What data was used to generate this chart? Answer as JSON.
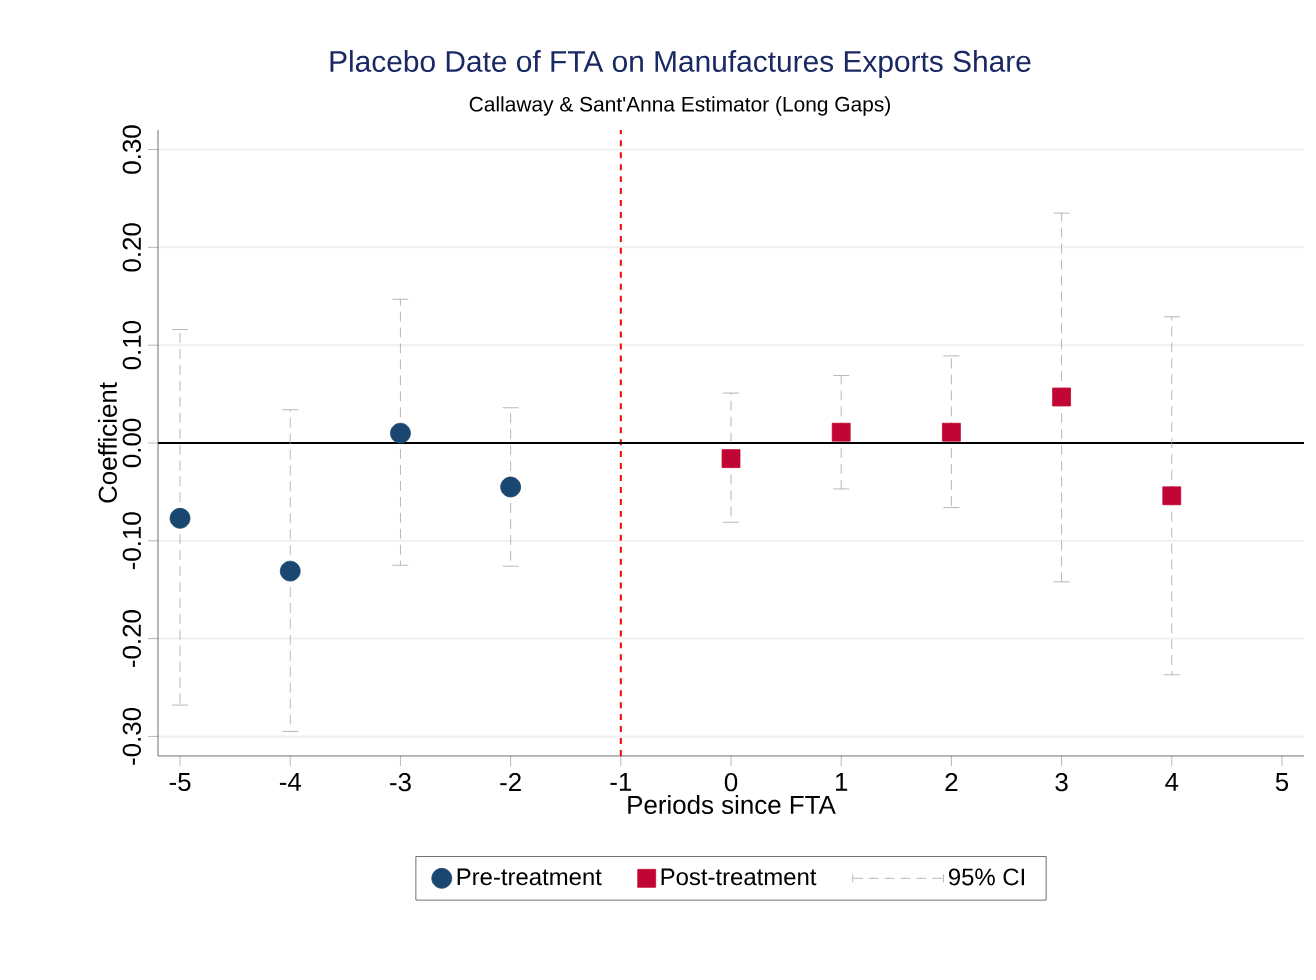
{
  "chart_data": {
    "type": "scatter",
    "title": "Placebo Date of FTA on Manufactures Exports Share",
    "subtitle": "Callaway & Sant'Anna Estimator (Long Gaps)",
    "xlabel": "Periods since FTA",
    "ylabel": "Coefficient",
    "series": [
      {
        "name": "Pre-treatment",
        "color": "#1a476f",
        "marker": "circle",
        "x": [
          -5,
          -4,
          -3,
          -2
        ],
        "values": [
          -0.077,
          -0.131,
          0.01,
          -0.045
        ],
        "errors": [
          [
            -0.268,
            0.116
          ],
          [
            -0.295,
            0.034
          ],
          [
            -0.125,
            0.147
          ],
          [
            -0.126,
            0.036
          ]
        ]
      },
      {
        "name": "Post-treatment",
        "color": "#c10534",
        "marker": "square",
        "x": [
          0,
          1,
          2,
          3,
          4
        ],
        "values": [
          -0.016,
          0.011,
          0.011,
          0.047,
          -0.054
        ],
        "errors": [
          [
            -0.081,
            0.051
          ],
          [
            -0.047,
            0.069
          ],
          [
            -0.066,
            0.089
          ],
          [
            -0.142,
            0.235
          ],
          [
            -0.237,
            0.129
          ]
        ]
      }
    ],
    "annotations": [
      "95% CI"
    ],
    "xlim": [
      -5.2,
      5.2
    ],
    "xticks": [
      -5,
      -4,
      -3,
      -2,
      -1,
      0,
      1,
      2,
      3,
      4,
      5
    ],
    "ylim": [
      -0.32,
      0.32
    ],
    "yticks": [
      {
        "value": -0.3,
        "label": "-0.30"
      },
      {
        "value": -0.2,
        "label": "-0.20"
      },
      {
        "value": -0.1,
        "label": "-0.10"
      },
      {
        "value": 0,
        "label": "0.00"
      },
      {
        "value": 0.1,
        "label": "0.10"
      },
      {
        "value": 0.2,
        "label": "0.20"
      },
      {
        "value": 0.3,
        "label": "0.30"
      }
    ],
    "ref_lines": [
      {
        "axis": "x",
        "value": -1,
        "color": "#ff0000",
        "line_style": "dashed"
      },
      {
        "axis": "y",
        "value": 0,
        "color": "#000000",
        "line_style": "solid"
      }
    ],
    "grid": "y",
    "legend": "bottom"
  }
}
